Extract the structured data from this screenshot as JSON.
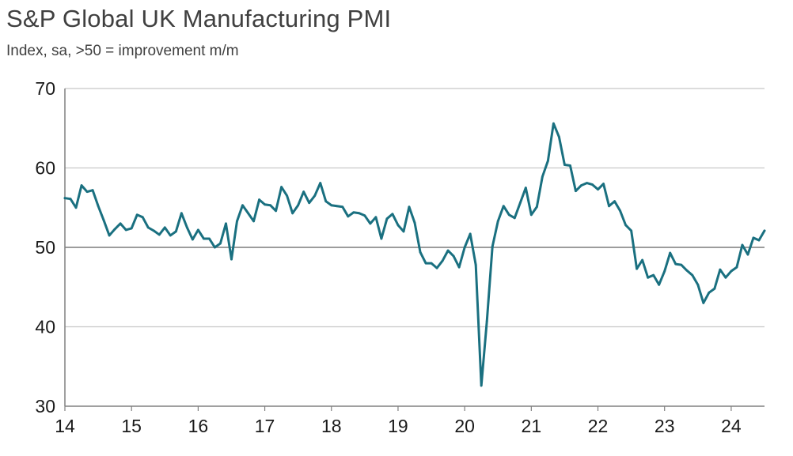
{
  "header": {
    "title": "S&P Global UK Manufacturing PMI",
    "subtitle": "Index, sa, >50 = improvement m/m"
  },
  "colors": {
    "line": "#1a7080",
    "grid": "#c8c8c8",
    "axis": "#808080",
    "reference": "#808080"
  },
  "chart_data": {
    "type": "line",
    "title": "S&P Global UK Manufacturing PMI",
    "subtitle": "Index, sa, >50 = improvement m/m",
    "xlabel": "",
    "ylabel": "",
    "x_start": "2014-01",
    "x_end": "2024-07",
    "ylim": [
      30,
      70
    ],
    "yticks": [
      "30",
      "40",
      "50",
      "60",
      "70"
    ],
    "xticks": [
      "14",
      "15",
      "16",
      "17",
      "18",
      "19",
      "20",
      "21",
      "22",
      "23",
      "24"
    ],
    "reference_line": 50,
    "grid": true,
    "legend": "none",
    "series": [
      {
        "x": [
          "2014-01",
          "2014-02",
          "2014-03",
          "2014-04",
          "2014-05",
          "2014-06",
          "2014-07",
          "2014-08",
          "2014-09",
          "2014-10",
          "2014-11",
          "2014-12",
          "2015-01",
          "2015-02",
          "2015-03",
          "2015-04",
          "2015-05",
          "2015-06",
          "2015-07",
          "2015-08",
          "2015-09",
          "2015-10",
          "2015-11",
          "2015-12",
          "2016-01",
          "2016-02",
          "2016-03",
          "2016-04",
          "2016-05",
          "2016-06",
          "2016-07",
          "2016-08",
          "2016-09",
          "2016-10",
          "2016-11",
          "2016-12",
          "2017-01",
          "2017-02",
          "2017-03",
          "2017-04",
          "2017-05",
          "2017-06",
          "2017-07",
          "2017-08",
          "2017-09",
          "2017-10",
          "2017-11",
          "2017-12",
          "2018-01",
          "2018-02",
          "2018-03",
          "2018-04",
          "2018-05",
          "2018-06",
          "2018-07",
          "2018-08",
          "2018-09",
          "2018-10",
          "2018-11",
          "2018-12",
          "2019-01",
          "2019-02",
          "2019-03",
          "2019-04",
          "2019-05",
          "2019-06",
          "2019-07",
          "2019-08",
          "2019-09",
          "2019-10",
          "2019-11",
          "2019-12",
          "2020-01",
          "2020-02",
          "2020-03",
          "2020-04",
          "2020-05",
          "2020-06",
          "2020-07",
          "2020-08",
          "2020-09",
          "2020-10",
          "2020-11",
          "2020-12",
          "2021-01",
          "2021-02",
          "2021-03",
          "2021-04",
          "2021-05",
          "2021-06",
          "2021-07",
          "2021-08",
          "2021-09",
          "2021-10",
          "2021-11",
          "2021-12",
          "2022-01",
          "2022-02",
          "2022-03",
          "2022-04",
          "2022-05",
          "2022-06",
          "2022-07",
          "2022-08",
          "2022-09",
          "2022-10",
          "2022-11",
          "2022-12",
          "2023-01",
          "2023-02",
          "2023-03",
          "2023-04",
          "2023-05",
          "2023-06",
          "2023-07",
          "2023-08",
          "2023-09",
          "2023-10",
          "2023-11",
          "2023-12",
          "2024-01",
          "2024-02",
          "2024-03",
          "2024-04",
          "2024-05",
          "2024-06",
          "2024-07"
        ],
        "values": [
          56.2,
          56.1,
          55.0,
          57.8,
          57.0,
          57.2,
          55.2,
          53.4,
          51.5,
          52.3,
          53.0,
          52.2,
          52.4,
          54.1,
          53.8,
          52.5,
          52.1,
          51.6,
          52.5,
          51.5,
          52.0,
          54.3,
          52.5,
          51.0,
          52.2,
          51.1,
          51.1,
          50.0,
          50.5,
          53.0,
          48.5,
          53.3,
          55.3,
          54.3,
          53.3,
          56.0,
          55.4,
          55.3,
          54.6,
          57.6,
          56.5,
          54.3,
          55.3,
          57.0,
          55.6,
          56.5,
          58.1,
          55.8,
          55.3,
          55.2,
          55.1,
          53.9,
          54.4,
          54.3,
          54.0,
          53.0,
          53.8,
          51.1,
          53.6,
          54.2,
          52.8,
          52.0,
          55.1,
          53.1,
          49.4,
          48.0,
          48.0,
          47.4,
          48.3,
          49.6,
          48.9,
          47.5,
          50.0,
          51.7,
          47.8,
          32.6,
          40.7,
          50.1,
          53.3,
          55.2,
          54.1,
          53.7,
          55.6,
          57.5,
          54.1,
          55.1,
          58.9,
          60.9,
          65.6,
          63.9,
          60.4,
          60.3,
          57.1,
          57.8,
          58.1,
          57.9,
          57.3,
          58.0,
          55.2,
          55.8,
          54.6,
          52.8,
          52.1,
          47.3,
          48.4,
          46.2,
          46.5,
          45.3,
          47.0,
          49.3,
          47.9,
          47.8,
          47.1,
          46.5,
          45.3,
          43.0,
          44.3,
          44.8,
          47.2,
          46.2,
          47.0,
          47.5,
          50.3,
          49.1,
          51.2,
          50.9,
          52.1
        ]
      }
    ]
  }
}
